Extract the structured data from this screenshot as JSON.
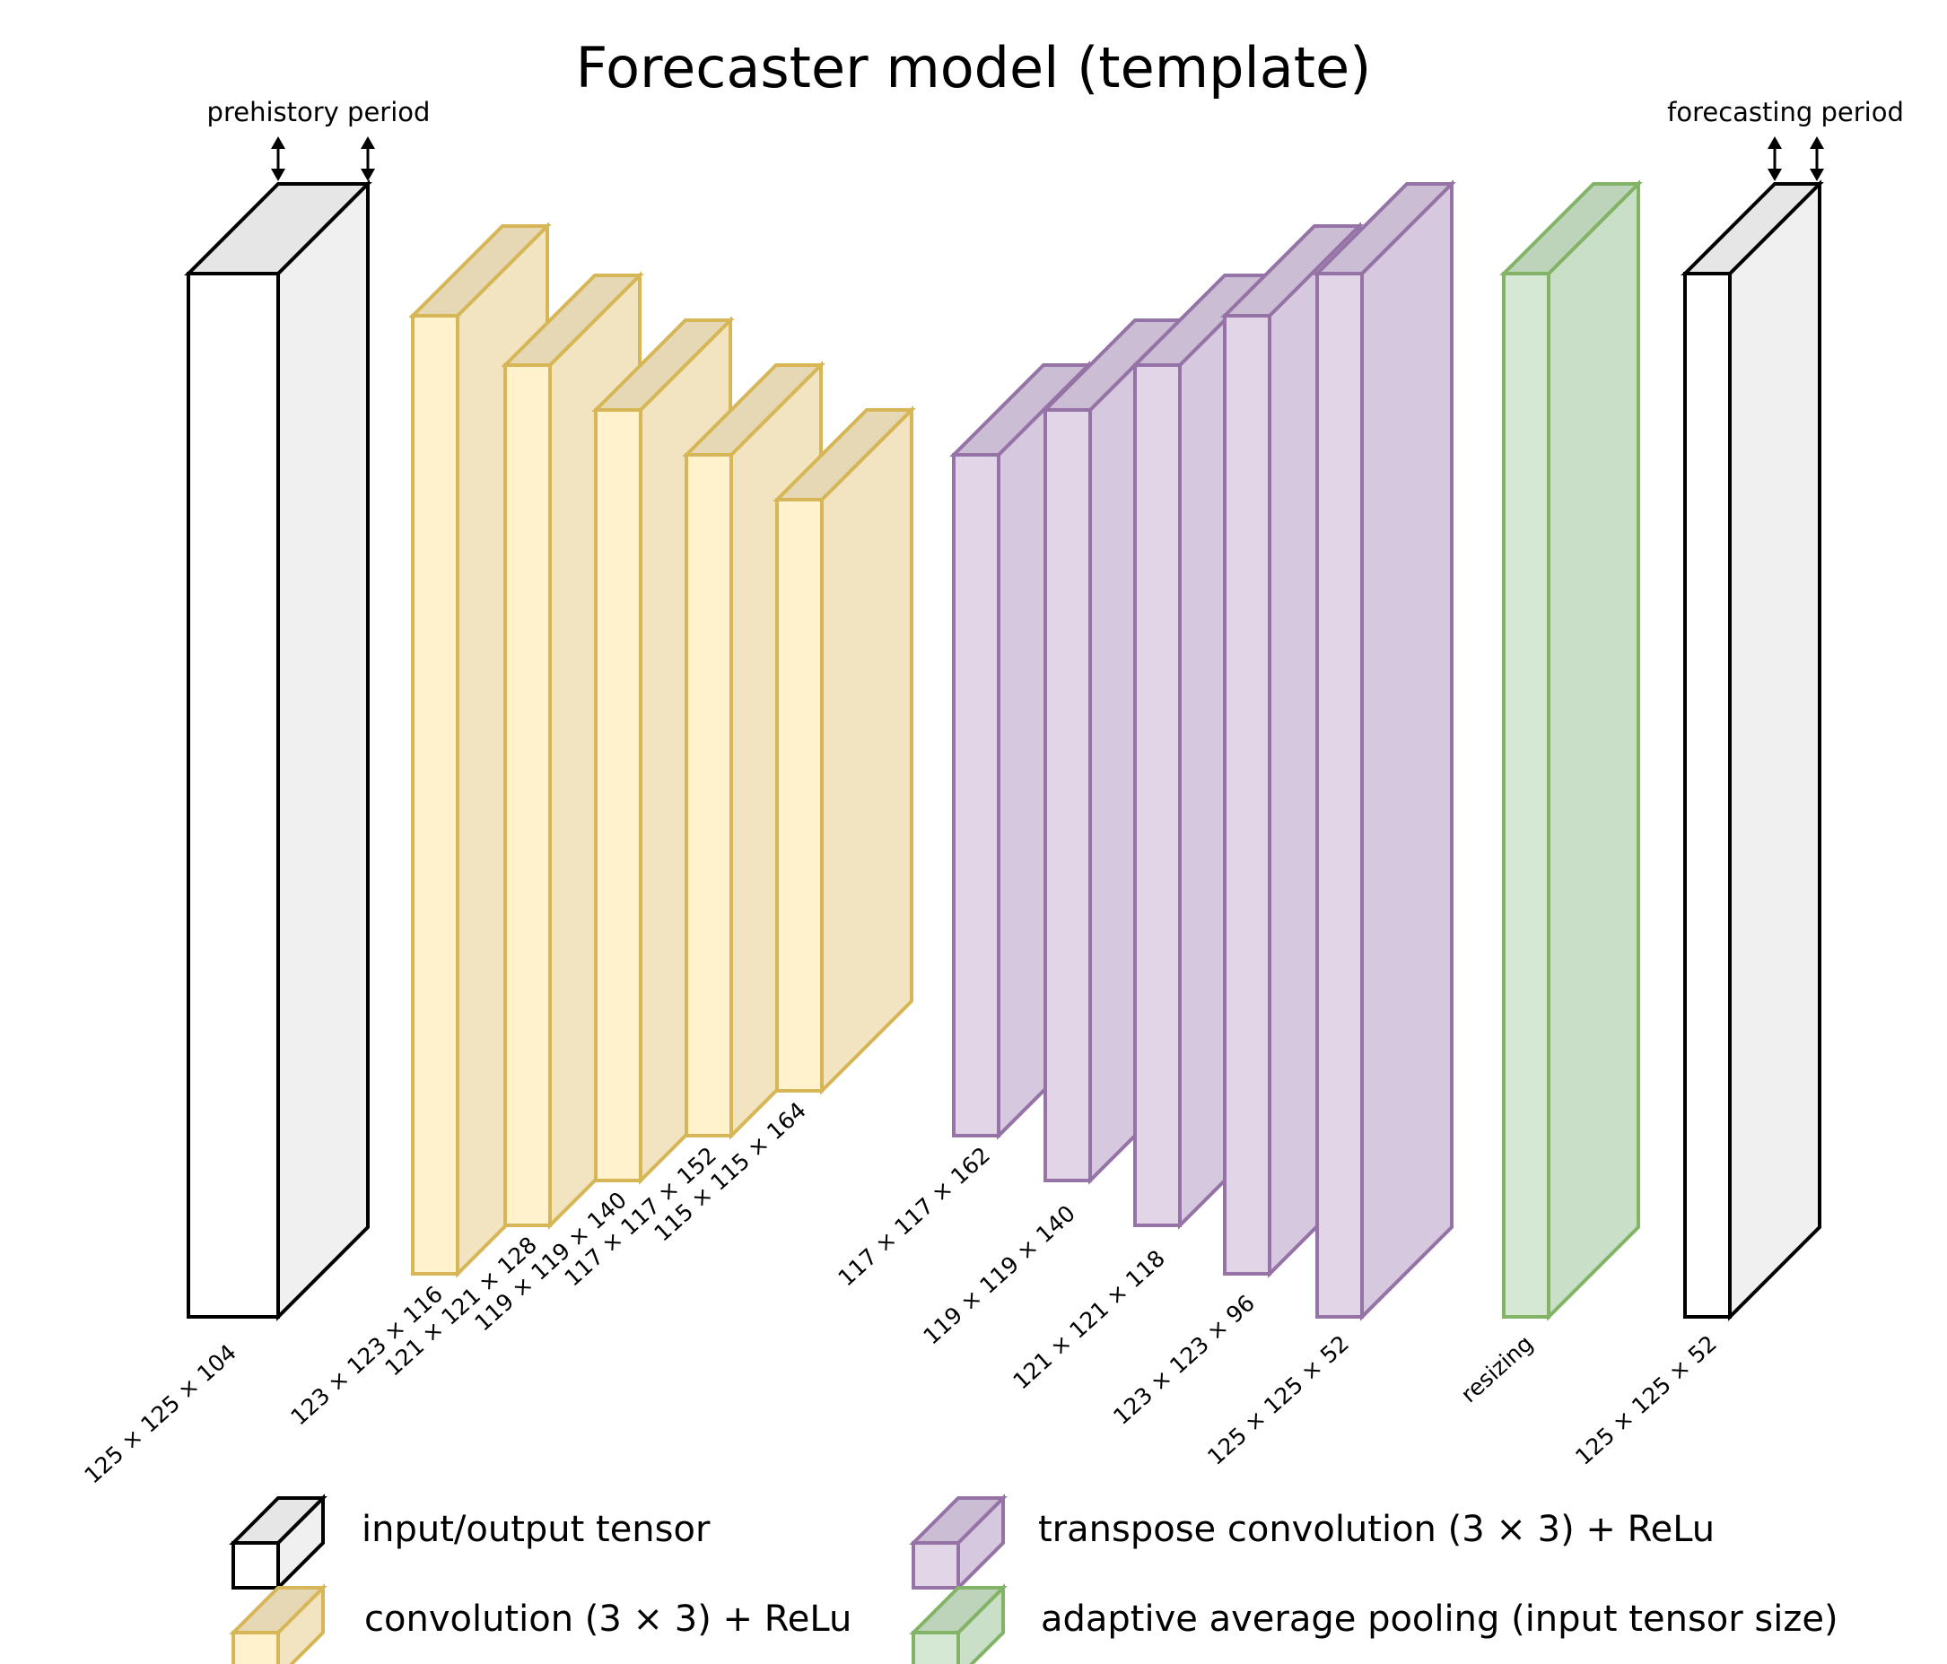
{
  "title": "Forecaster model (template)",
  "prehistory_label": "prehistory period",
  "forecasting_label": "forecasting period",
  "colors": {
    "io": {
      "front": "#ffffff",
      "side": "#f0f0f0",
      "top": "#e6e6e6",
      "stroke": "#000000"
    },
    "conv": {
      "front": "#fff2cc",
      "side": "#f2e4c0",
      "top": "#e6d8b4",
      "stroke": "#d6b656"
    },
    "tconv": {
      "front": "#e1d5e7",
      "side": "#d6c8df",
      "top": "#cbbdd4",
      "stroke": "#9673a6"
    },
    "pool": {
      "front": "#d5e8d4",
      "side": "#c9dfc8",
      "top": "#bdd4bb",
      "stroke": "#82b366"
    }
  },
  "blocks": [
    {
      "kind": "io",
      "label": "125 × 125 × 104"
    },
    {
      "kind": "conv",
      "label": "123 × 123 × 116"
    },
    {
      "kind": "conv",
      "label": "121 × 121 × 128"
    },
    {
      "kind": "conv",
      "label": "119 × 119 × 140"
    },
    {
      "kind": "conv",
      "label": "117 × 117 × 152"
    },
    {
      "kind": "conv",
      "label": "115 × 115 × 164"
    },
    {
      "kind": "tconv",
      "label": "117 × 117 × 162"
    },
    {
      "kind": "tconv",
      "label": "119 × 119 × 140"
    },
    {
      "kind": "tconv",
      "label": "121 × 121 × 118"
    },
    {
      "kind": "tconv",
      "label": "123 × 123 × 96"
    },
    {
      "kind": "tconv",
      "label": "125 × 125 × 52"
    },
    {
      "kind": "pool",
      "label": "resizing"
    },
    {
      "kind": "io",
      "label": "125 × 125 × 52"
    }
  ],
  "legend": [
    {
      "kind": "io",
      "label": "input/output tensor"
    },
    {
      "kind": "tconv",
      "label": "transpose convolution (3 × 3) + ReLu"
    },
    {
      "kind": "conv",
      "label": "convolution (3 × 3) + ReLu"
    },
    {
      "kind": "pool",
      "label": "adaptive average pooling (input tensor size)"
    }
  ]
}
